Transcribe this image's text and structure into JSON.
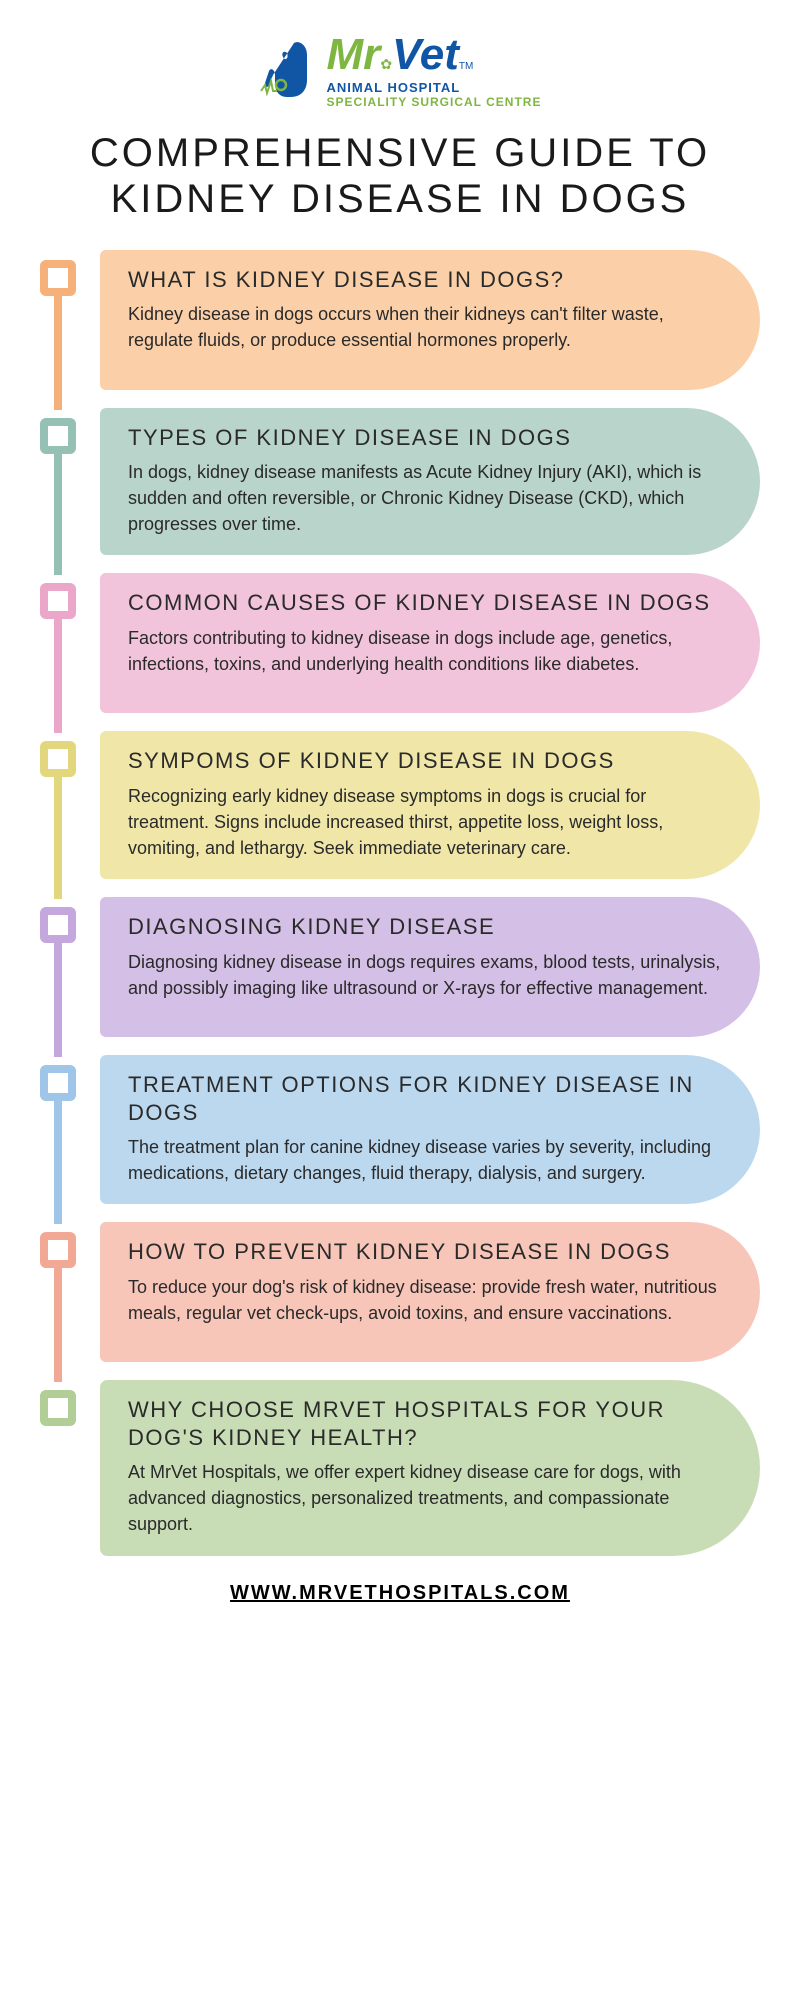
{
  "logo": {
    "mr": "Mr",
    "vet": "Vet",
    "tm": "TM",
    "sub1": "ANIMAL HOSPITAL",
    "sub2": "SPECIALITY SURGICAL CENTRE",
    "green": "#7fb642",
    "blue": "#1156a4"
  },
  "title": "COMPREHENSIVE GUIDE TO KIDNEY DISEASE IN DOGS",
  "title_fontsize": 40,
  "title_color": "#1a1a1a",
  "background_color": "#ffffff",
  "card_title_fontsize": 22,
  "card_body_fontsize": 18,
  "card_border_radius_right": 120,
  "marker_size": 36,
  "marker_border": 8,
  "connector_width": 8,
  "sections": [
    {
      "heading": "WHAT IS KIDNEY DISEASE IN DOGS?",
      "body": "Kidney disease in dogs occurs when their kidneys can't filter waste, regulate fluids, or produce essential hormones properly.",
      "color": "#fbd0a8",
      "accent": "#f6b07a"
    },
    {
      "heading": "TYPES OF KIDNEY DISEASE IN DOGS",
      "body": "In dogs, kidney disease manifests as Acute Kidney Injury (AKI), which is sudden and often reversible, or Chronic Kidney Disease (CKD), which progresses over time.",
      "color": "#b9d4cb",
      "accent": "#95c1b4"
    },
    {
      "heading": "COMMON CAUSES OF KIDNEY DISEASE IN DOGS",
      "body": "Factors contributing to kidney disease in dogs include age, genetics, infections, toxins, and underlying health conditions like diabetes.",
      "color": "#f2c4db",
      "accent": "#eaa7c9"
    },
    {
      "heading": "SYMPOMS OF KIDNEY DISEASE IN DOGS",
      "body": "Recognizing early kidney disease symptoms in dogs is crucial for treatment. Signs include increased thirst, appetite loss, weight loss, vomiting, and lethargy. Seek immediate veterinary care.",
      "color": "#efe6a8",
      "accent": "#e3d77e"
    },
    {
      "heading": "DIAGNOSING KIDNEY DISEASE",
      "body": "Diagnosing kidney disease in dogs requires exams, blood tests, urinalysis, and possibly imaging like ultrasound or X-rays for effective management.",
      "color": "#d4bfe6",
      "accent": "#c4a8dd"
    },
    {
      "heading": "TREATMENT OPTIONS FOR KIDNEY DISEASE IN DOGS",
      "body": "The treatment plan for canine kidney disease varies by severity, including medications, dietary changes, fluid therapy, dialysis, and surgery.",
      "color": "#bcd8ef",
      "accent": "#9fc6e8"
    },
    {
      "heading": "HOW TO PREVENT KIDNEY DISEASE IN DOGS",
      "body": "To reduce your dog's risk of kidney disease: provide fresh water, nutritious meals, regular vet check-ups, avoid toxins, and ensure vaccinations.",
      "color": "#f7c6b9",
      "accent": "#f1a995"
    },
    {
      "heading": "WHY CHOOSE MRVET HOSPITALS FOR YOUR DOG'S KIDNEY HEALTH?",
      "body": "At MrVet Hospitals, we offer expert kidney disease care for dogs, with advanced diagnostics, personalized treatments, and compassionate support.",
      "color": "#c8ddb6",
      "accent": "#b0ce95"
    }
  ],
  "footer_url": "WWW.MRVETHOSPITALS.COM"
}
